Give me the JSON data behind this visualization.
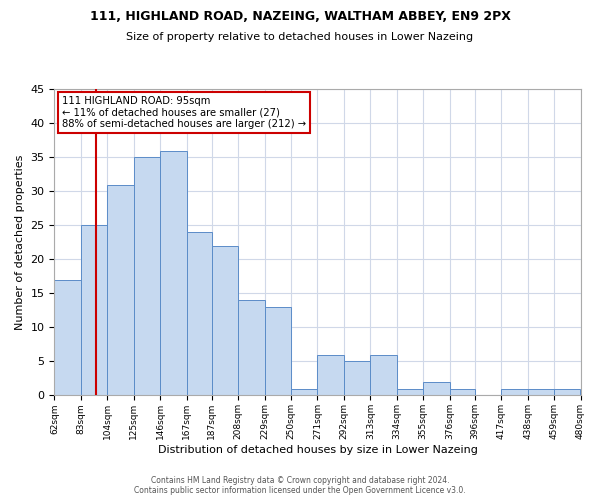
{
  "title": "111, HIGHLAND ROAD, NAZEING, WALTHAM ABBEY, EN9 2PX",
  "subtitle": "Size of property relative to detached houses in Lower Nazeing",
  "xlabel": "Distribution of detached houses by size in Lower Nazeing",
  "ylabel": "Number of detached properties",
  "footer_line1": "Contains HM Land Registry data © Crown copyright and database right 2024.",
  "footer_line2": "Contains public sector information licensed under the Open Government Licence v3.0.",
  "bin_edges": [
    62,
    83,
    104,
    125,
    146,
    167,
    187,
    208,
    229,
    250,
    271,
    292,
    313,
    334,
    355,
    376,
    396,
    417,
    438,
    459,
    480
  ],
  "bin_labels": [
    "62sqm",
    "83sqm",
    "104sqm",
    "125sqm",
    "146sqm",
    "167sqm",
    "187sqm",
    "208sqm",
    "229sqm",
    "250sqm",
    "271sqm",
    "292sqm",
    "313sqm",
    "334sqm",
    "355sqm",
    "376sqm",
    "396sqm",
    "417sqm",
    "438sqm",
    "459sqm",
    "480sqm"
  ],
  "counts": [
    17,
    25,
    31,
    35,
    36,
    24,
    22,
    14,
    13,
    1,
    6,
    5,
    6,
    1,
    2,
    1,
    0,
    1,
    1,
    1
  ],
  "bar_color": "#c6d9f0",
  "bar_edge_color": "#5b8cc8",
  "property_line_x": 95,
  "property_line_color": "#cc0000",
  "annotation_text": "111 HIGHLAND ROAD: 95sqm\n← 11% of detached houses are smaller (27)\n88% of semi-detached houses are larger (212) →",
  "annotation_box_color": "#ffffff",
  "annotation_box_edge_color": "#cc0000",
  "ylim": [
    0,
    45
  ],
  "yticks": [
    0,
    5,
    10,
    15,
    20,
    25,
    30,
    35,
    40,
    45
  ],
  "background_color": "#ffffff",
  "grid_color": "#d0d8e8"
}
